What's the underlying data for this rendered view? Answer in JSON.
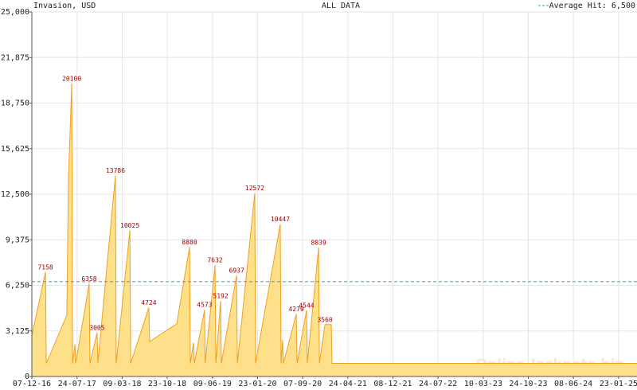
{
  "chart_data": {
    "type": "area",
    "title": "ALL DATA",
    "y_label": "Invasion, USD",
    "watermark": "Online-Jackpots.biz",
    "average": {
      "label": "Average Hit: 6,500",
      "value": 6500,
      "color": "#4a90b8"
    },
    "xlim": [
      "07-12-16",
      "26-04-25"
    ],
    "xticks": [
      "07-12-16",
      "24-07-17",
      "09-03-18",
      "23-10-18",
      "09-06-19",
      "23-01-20",
      "07-09-20",
      "24-04-21",
      "08-12-21",
      "24-07-22",
      "10-03-23",
      "24-10-23",
      "08-06-24",
      "23-01-25"
    ],
    "ylim": [
      0,
      25000
    ],
    "yticks": [
      0,
      {
        "value": 3125,
        "label": "3,125"
      },
      {
        "value": 6250,
        "label": "6,250"
      },
      {
        "value": 9375,
        "label": "9,375"
      },
      {
        "value": 12500,
        "label": "12,500"
      },
      {
        "value": 15625,
        "label": "15,625"
      },
      {
        "value": 18750,
        "label": "18,750"
      },
      {
        "value": 21875,
        "label": "21,875"
      },
      {
        "value": 25000,
        "label": "25,000"
      }
    ],
    "grid": true,
    "series": [
      {
        "name": "Invasion",
        "color": "#f0a020",
        "fill": "#ffe08a",
        "x": [
          "07-12-16",
          "14-02-17",
          "18-02-17",
          "02-06-17",
          "10-06-17",
          "27-06-17",
          "01-07-17",
          "13-07-17",
          "17-07-17",
          "23-09-17",
          "27-09-17",
          "02-11-17",
          "06-11-17",
          "03-02-18",
          "07-02-18",
          "17-04-18",
          "21-04-18",
          "22-07-18",
          "26-07-18",
          "10-12-18",
          "13-02-19",
          "17-02-19",
          "05-03-19",
          "09-03-19",
          "30-04-19",
          "03-05-19",
          "22-06-19",
          "26-06-19",
          "20-07-19",
          "24-07-19",
          "09-10-19",
          "13-10-19",
          "09-01-20",
          "13-01-20",
          "17-05-20",
          "21-05-20",
          "29-05-20",
          "02-06-20",
          "06-08-20",
          "10-08-20",
          "27-09-20",
          "01-10-20",
          "27-11-20",
          "01-12-20",
          "29-12-20",
          "30-01-21",
          "03-02-21",
          "26-04-25"
        ],
        "values": [
          2800,
          7158,
          900,
          4200,
          13500,
          20100,
          900,
          2200,
          900,
          6358,
          900,
          3005,
          900,
          13786,
          900,
          10025,
          900,
          4724,
          2400,
          3600,
          8880,
          900,
          2300,
          900,
          4573,
          900,
          7632,
          900,
          5192,
          900,
          6937,
          900,
          12572,
          900,
          10447,
          900,
          2500,
          900,
          4279,
          900,
          4544,
          900,
          8839,
          900,
          3560,
          3560,
          900,
          900
        ],
        "value_labels": [
          null,
          "7158",
          null,
          null,
          null,
          "20100",
          null,
          null,
          null,
          "6358",
          null,
          "3005",
          null,
          "13786",
          null,
          "10025",
          null,
          "4724",
          null,
          null,
          "8880",
          null,
          null,
          null,
          "4573",
          null,
          "7632",
          null,
          "5192",
          null,
          "6937",
          null,
          "12572",
          null,
          "10447",
          null,
          null,
          null,
          "4279",
          null,
          "4544",
          null,
          "8839",
          null,
          "3560",
          null,
          null,
          null
        ]
      }
    ]
  }
}
